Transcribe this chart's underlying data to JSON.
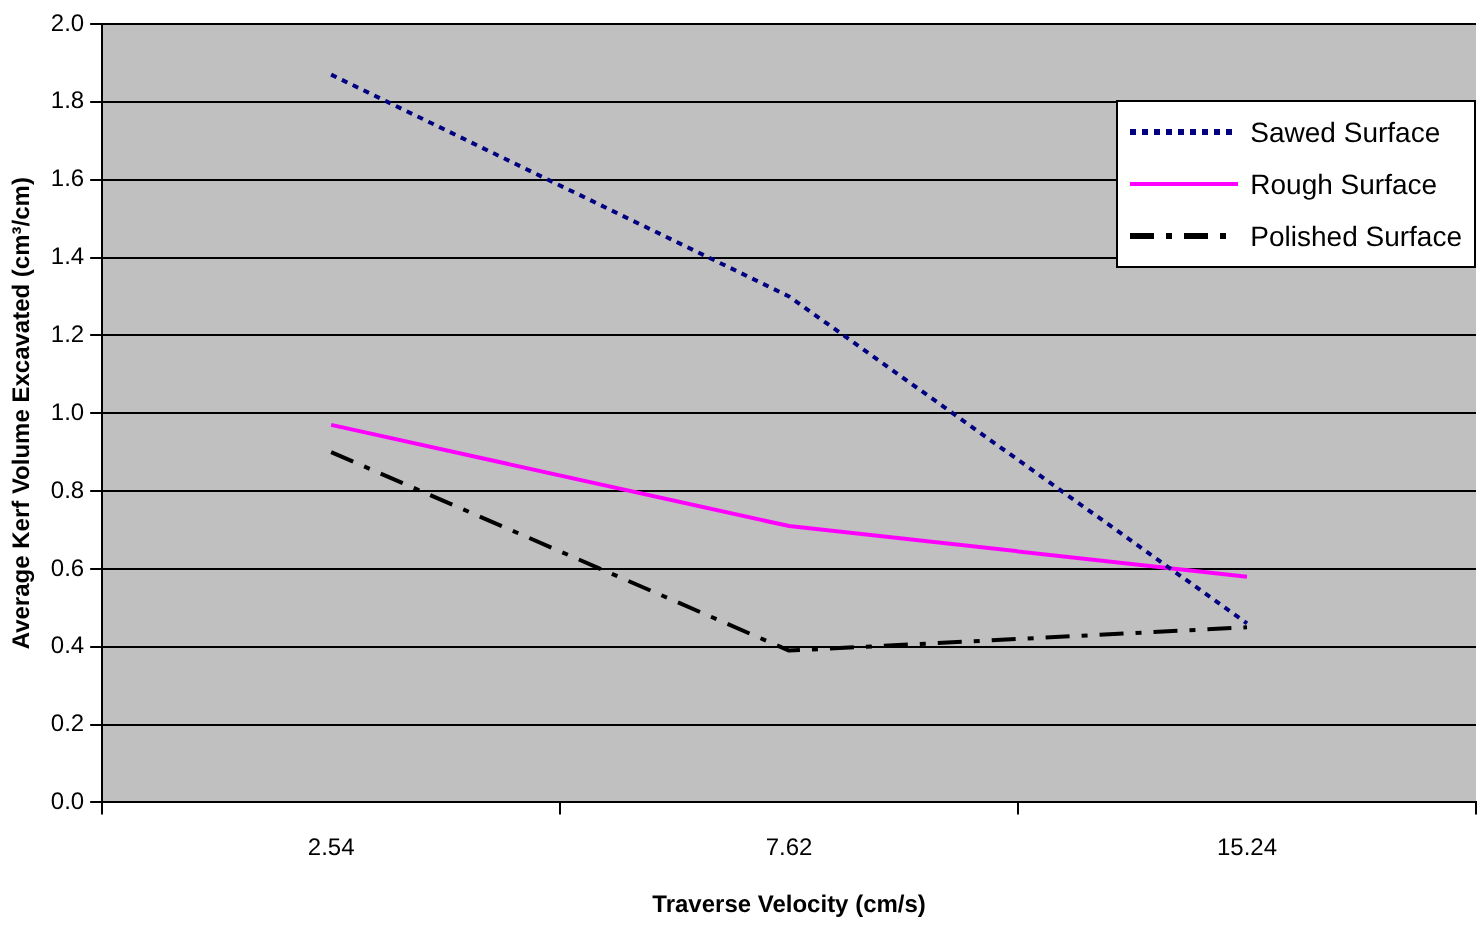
{
  "chart_data": {
    "type": "line",
    "xlabel": "Traverse Velocity (cm/s)",
    "ylabel": "Average Kerf Volume Excavated (cm³/cm)",
    "categories": [
      "2.54",
      "7.62",
      "15.24"
    ],
    "series": [
      {
        "name": "Sawed Surface",
        "color": "#000080",
        "line_style": "dotted",
        "values": [
          1.87,
          1.3,
          0.46
        ]
      },
      {
        "name": "Rough Surface",
        "color": "#ff00ff",
        "line_style": "solid",
        "values": [
          0.97,
          0.71,
          0.58
        ]
      },
      {
        "name": "Polished Surface",
        "color": "#000000",
        "line_style": "dashed",
        "values": [
          0.9,
          0.39,
          0.45
        ]
      }
    ],
    "ylim": [
      0,
      2
    ],
    "yticks": [
      {
        "value": 0,
        "label": "0.0"
      },
      0.2,
      0.4,
      0.6,
      0.8,
      {
        "value": 1,
        "label": "1.0"
      },
      1.2,
      1.4,
      1.6,
      1.8,
      {
        "value": 2,
        "label": "2.0"
      }
    ],
    "grid": "y",
    "legend": "top right",
    "marker": "none"
  }
}
